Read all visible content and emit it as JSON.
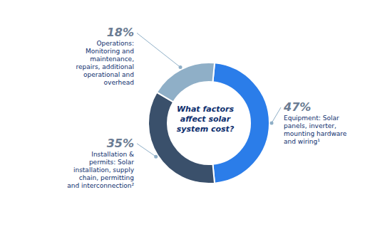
{
  "chart_data": {
    "type": "pie",
    "title": "What factors\naffect solar\nsystem cost?",
    "categories": [
      "Equipment: Solar\npanels, inverter,\nmounting hardware\nand wiring¹",
      "Installation &\npermits: Solar\ninstallation, supply\nchain, permitting\nand interconnection²",
      "Operations:\nMonitoring and\nmaintenance,\nrepairs, additional\noperational and\noverhead"
    ],
    "values": [
      47,
      35,
      18
    ],
    "value_labels": [
      "47%",
      "35%",
      "18%"
    ],
    "colors": [
      "#2b7de9",
      "#3a506b",
      "#8fafc7"
    ],
    "data_labels": true
  }
}
